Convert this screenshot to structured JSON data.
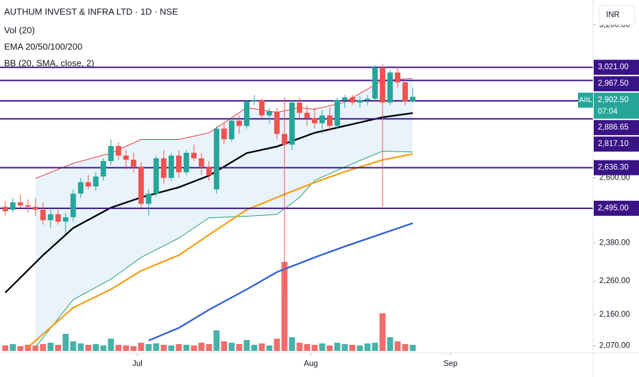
{
  "chart_data": {
    "type": "candlestick",
    "title": "AUTHUM INVEST & INFRA LTD · 1D · NSE",
    "indicator_labels": [
      "Vol (20)",
      "EMA 20/50/100/200",
      "BB (20, SMA, close, 2)"
    ],
    "currency": "INR",
    "symbol": "AIIL",
    "countdown": "07:04",
    "log_scale": true,
    "up_color": "#26a69a",
    "down_color": "#ef5350",
    "level_color": "#3a1387",
    "ylim": [
      2050,
      3310
    ],
    "yticks": [
      {
        "value": 3200,
        "label": "3,200.00"
      },
      {
        "value": 2600,
        "label": "2,600.00"
      },
      {
        "value": 2380,
        "label": "2,380.00"
      },
      {
        "value": 2260,
        "label": "2,260.00"
      },
      {
        "value": 2160,
        "label": "2,160.00"
      },
      {
        "value": 2070,
        "label": "2,070.00"
      }
    ],
    "xlim": [
      -0.7,
      77.9
    ],
    "xticks": [
      {
        "value": 17.5,
        "label": "Jul"
      },
      {
        "value": 40.5,
        "label": "Aug"
      },
      {
        "value": 59,
        "label": "Sep"
      }
    ],
    "last_price": {
      "value": 2902.5,
      "label": "2,902.50"
    },
    "levels": [
      {
        "value": 3021,
        "label": "3,021.00"
      },
      {
        "value": 2967.5,
        "label": "2,967.50"
      },
      {
        "value": 2886.65,
        "label": "2,886.65"
      },
      {
        "value": 2817.1,
        "label": "2,817.10"
      },
      {
        "value": 2636.3,
        "label": "2,636.30"
      },
      {
        "value": 2495,
        "label": "2,495.00"
      }
    ],
    "ohlc": [
      [
        2500,
        2520,
        2470,
        2485
      ],
      [
        2490,
        2530,
        2480,
        2515
      ],
      [
        2515,
        2540,
        2495,
        2505
      ],
      [
        2505,
        2525,
        2480,
        2500
      ],
      [
        2500,
        2530,
        2470,
        2490
      ],
      [
        2490,
        2515,
        2440,
        2455
      ],
      [
        2455,
        2490,
        2430,
        2475
      ],
      [
        2475,
        2490,
        2440,
        2450
      ],
      [
        2450,
        2480,
        2410,
        2465
      ],
      [
        2465,
        2560,
        2450,
        2545
      ],
      [
        2545,
        2600,
        2530,
        2585
      ],
      [
        2585,
        2610,
        2560,
        2570
      ],
      [
        2570,
        2620,
        2555,
        2605
      ],
      [
        2605,
        2670,
        2590,
        2660
      ],
      [
        2660,
        2740,
        2645,
        2715
      ],
      [
        2715,
        2730,
        2665,
        2680
      ],
      [
        2680,
        2700,
        2630,
        2665
      ],
      [
        2665,
        2690,
        2620,
        2640
      ],
      [
        2640,
        2655,
        2490,
        2510
      ],
      [
        2510,
        2560,
        2470,
        2545
      ],
      [
        2545,
        2680,
        2535,
        2670
      ],
      [
        2670,
        2700,
        2580,
        2600
      ],
      [
        2600,
        2690,
        2590,
        2680
      ],
      [
        2680,
        2700,
        2600,
        2620
      ],
      [
        2620,
        2700,
        2610,
        2690
      ],
      [
        2690,
        2720,
        2660,
        2670
      ],
      [
        2670,
        2690,
        2610,
        2640
      ],
      [
        2640,
        2660,
        2590,
        2610
      ],
      [
        2560,
        2790,
        2545,
        2780
      ],
      [
        2780,
        2800,
        2720,
        2740
      ],
      [
        2740,
        2820,
        2730,
        2810
      ],
      [
        2810,
        2830,
        2760,
        2790
      ],
      [
        2790,
        2890,
        2780,
        2885
      ],
      [
        2885,
        2910,
        2870,
        2890
      ],
      [
        2890,
        2895,
        2820,
        2830
      ],
      [
        2830,
        2860,
        2800,
        2845
      ],
      [
        2845,
        2860,
        2740,
        2760
      ],
      [
        2760,
        2900,
        2220,
        2720
      ],
      [
        2720,
        2890,
        2700,
        2880
      ],
      [
        2880,
        2900,
        2820,
        2840
      ],
      [
        2840,
        2870,
        2790,
        2820
      ],
      [
        2820,
        2860,
        2780,
        2800
      ],
      [
        2800,
        2850,
        2760,
        2830
      ],
      [
        2830,
        2860,
        2770,
        2790
      ],
      [
        2790,
        2900,
        2780,
        2890
      ],
      [
        2890,
        2910,
        2860,
        2900
      ],
      [
        2900,
        2910,
        2870,
        2880
      ],
      [
        2880,
        2905,
        2860,
        2890
      ],
      [
        2890,
        2910,
        2870,
        2895
      ],
      [
        2895,
        3030,
        2890,
        3020
      ],
      [
        3020,
        3035,
        2500,
        2880
      ],
      [
        2880,
        3010,
        2870,
        3000
      ],
      [
        3000,
        3025,
        2940,
        2960
      ],
      [
        2960,
        2970,
        2870,
        2885
      ],
      [
        2885,
        2940,
        2880,
        2902.5
      ]
    ],
    "volume_ylim": [
      0,
      150
    ],
    "volume": [
      8,
      10,
      7,
      9,
      8,
      10,
      12,
      9,
      25,
      14,
      11,
      9,
      10,
      8,
      18,
      9,
      8,
      7,
      12,
      10,
      11,
      9,
      8,
      10,
      9,
      8,
      12,
      10,
      30,
      14,
      12,
      10,
      16,
      9,
      11,
      8,
      18,
      130,
      20,
      12,
      10,
      9,
      11,
      8,
      12,
      10,
      9,
      8,
      11,
      12,
      55,
      20,
      14,
      10,
      9
    ],
    "bands": {
      "fill": "#e3f0fb",
      "x": [
        4,
        9,
        14,
        18,
        23,
        27,
        32,
        36,
        39,
        41,
        45,
        50,
        54
      ],
      "upper": {
        "color": "#e5393b",
        "values": [
          2598,
          2652,
          2689,
          2739,
          2739,
          2764,
          2860,
          2842,
          2860,
          2854,
          2881,
          2968,
          2976
        ]
      },
      "lower": {
        "color": "#1f9e72",
        "values": [
          2066,
          2204,
          2266,
          2334,
          2396,
          2463,
          2468,
          2474,
          2532,
          2591,
          2639,
          2696,
          2693
        ]
      }
    },
    "lines": [
      {
        "color": "#000000",
        "width": 2.4,
        "x": [
          0,
          5,
          9,
          14,
          18,
          23,
          27,
          32,
          36,
          41,
          45,
          50,
          54
        ],
        "values": [
          2225,
          2341,
          2429,
          2497,
          2532,
          2567,
          2608,
          2689,
          2713,
          2764,
          2790,
          2823,
          2839
        ]
      },
      {
        "color": "#f5a01a",
        "width": 2.4,
        "x": [
          3,
          9,
          14,
          18,
          23,
          27,
          32,
          36,
          41,
          45,
          50,
          54
        ],
        "values": [
          2066,
          2180,
          2235,
          2292,
          2341,
          2407,
          2490,
          2532,
          2584,
          2622,
          2664,
          2686
        ]
      },
      {
        "color": "#2c5fd9",
        "width": 2.4,
        "x": [
          19,
          23,
          27,
          32,
          36,
          41,
          45,
          50,
          54
        ],
        "values": [
          2085,
          2121,
          2174,
          2235,
          2288,
          2334,
          2369,
          2411,
          2445
        ]
      }
    ]
  }
}
